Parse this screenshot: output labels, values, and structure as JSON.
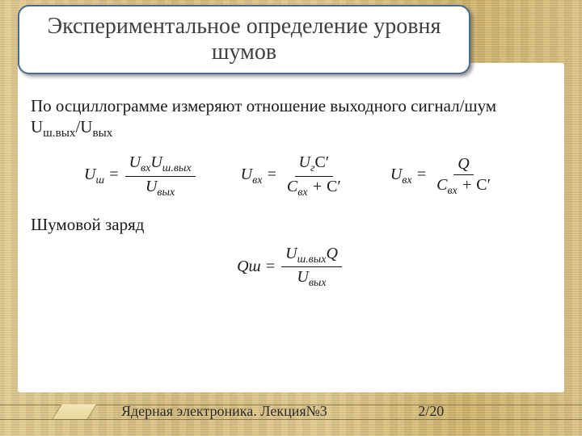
{
  "colors": {
    "background_base": "#d9c28a",
    "panel": "#ffffff",
    "title_border": "#476b8e",
    "title_text": "#404040",
    "body_text": "#1a1a1a",
    "rule": "#8b7a46",
    "footer_text": "#2b2b2b"
  },
  "title": "Экспериментальное определение уровня шумов",
  "paragraph1_prefix": "По осциллограмме измеряют отношение выходного сигнал/шум ",
  "ratio_left": "U",
  "ratio_left_sub": "ш.вых",
  "ratio_slash": "/",
  "ratio_right": "U",
  "ratio_right_sub": "вых",
  "formulas_row1": {
    "f1": {
      "lhs": "U",
      "lhs_sub": "ш",
      "num_a": "U",
      "num_a_sub": "вх",
      "num_b": "U",
      "num_b_sub": "ш.вых",
      "den": "U",
      "den_sub": "вых"
    },
    "f2": {
      "lhs": "U",
      "lhs_sub": "вх",
      "num_a": "U",
      "num_a_sub": "г",
      "num_b": "C′",
      "den_a": "C",
      "den_a_sub": "вх",
      "den_plus": " + ",
      "den_b": "C′"
    },
    "f3": {
      "lhs": "U",
      "lhs_sub": "вх",
      "num": "Q",
      "den_a": "C",
      "den_a_sub": "вх",
      "den_plus": " + ",
      "den_b": "C′"
    }
  },
  "paragraph2": "Шумовой заряд",
  "formula2": {
    "lhs": "Qш",
    "num_a": "U",
    "num_a_sub": "ш.вых",
    "num_b": "Q",
    "den": "U",
    "den_sub": "вых"
  },
  "footer": {
    "lecture": "Ядерная электроника. Лекция№3",
    "page": "2/20"
  }
}
